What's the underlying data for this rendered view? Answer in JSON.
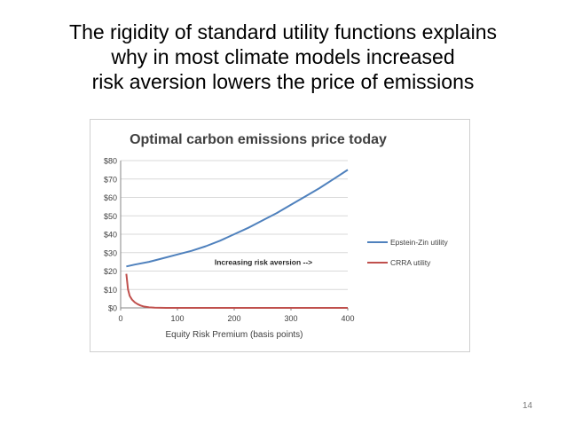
{
  "slide": {
    "title_lines": [
      "The rigidity of standard utility functions explains",
      "why in most climate models increased",
      "risk aversion lowers the price of emissions"
    ],
    "page_number": "14"
  },
  "chart_data": {
    "type": "line",
    "title": "Optimal carbon emissions price today",
    "xlabel": "Equity Risk Premium (basis points)",
    "ylabel": "",
    "xlim": [
      0,
      400
    ],
    "ylim": [
      0,
      80
    ],
    "x_ticks": [
      "0",
      "100",
      "200",
      "300",
      "400"
    ],
    "y_ticks": [
      "$0",
      "$10",
      "$20",
      "$30",
      "$40",
      "$50",
      "$60",
      "$70",
      "$80"
    ],
    "grid": "horizontal",
    "legend_position": "right",
    "annotation": "Increasing risk aversion -->",
    "series": [
      {
        "name": "Epstein-Zin utility",
        "color": "#4F81BD",
        "x": [
          10,
          25,
          50,
          75,
          100,
          125,
          150,
          175,
          200,
          225,
          250,
          275,
          300,
          325,
          350,
          375,
          400
        ],
        "y": [
          22.5,
          23.5,
          25,
          27,
          29,
          31,
          33.5,
          36.5,
          40,
          43.5,
          47.5,
          51.5,
          56,
          60.5,
          65,
          70,
          75
        ]
      },
      {
        "name": "CRRA utility",
        "color": "#C0504D",
        "x": [
          10,
          13,
          16,
          20,
          25,
          30,
          35,
          40,
          50,
          60,
          70,
          80,
          100,
          150,
          200,
          250,
          300,
          350,
          400
        ],
        "y": [
          18.5,
          10,
          6.5,
          4.5,
          3,
          2,
          1.3,
          0.8,
          0.3,
          0.12,
          0.05,
          0.02,
          0,
          0,
          0,
          0,
          0,
          0,
          0
        ]
      }
    ]
  }
}
